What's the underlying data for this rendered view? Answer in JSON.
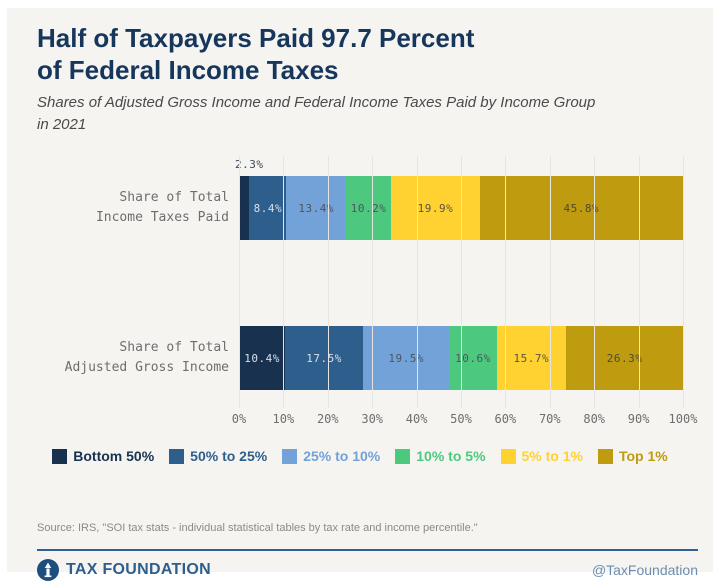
{
  "header": {
    "title": "Half of Taxpayers Paid 97.7 Percent\nof Federal Income Taxes",
    "subtitle": "Shares of Adjusted Gross Income and Federal Income Taxes Paid by Income Group\nin 2021"
  },
  "chart_data": {
    "type": "bar",
    "orientation": "horizontal",
    "stacked": true,
    "grid": true,
    "legend_position": "bottom",
    "xlim": [
      0,
      100
    ],
    "x_ticks": [
      "0%",
      "10%",
      "20%",
      "30%",
      "40%",
      "50%",
      "60%",
      "70%",
      "80%",
      "90%",
      "100%"
    ],
    "categories": [
      "Share of Total\nIncome Taxes Paid",
      "Share of Total\nAdjusted Gross Income"
    ],
    "series": [
      {
        "name": "Bottom 50%",
        "color": "#17314f",
        "label_color": "#d6e0ea",
        "values": [
          2.3,
          10.4
        ]
      },
      {
        "name": "50% to 25%",
        "color": "#2d5e8c",
        "label_color": "#d6e0ea",
        "values": [
          8.4,
          17.5
        ]
      },
      {
        "name": "25% to 10%",
        "color": "#72a2d8",
        "label_color": "#4e565f",
        "values": [
          13.4,
          19.5
        ]
      },
      {
        "name": "10% to 5%",
        "color": "#4cc97e",
        "label_color": "#4e565f",
        "values": [
          10.2,
          10.6
        ]
      },
      {
        "name": "5% to 1%",
        "color": "#ffd232",
        "label_color": "#5a5344",
        "values": [
          19.9,
          15.7
        ]
      },
      {
        "name": "Top 1%",
        "color": "#bf9b10",
        "label_color": "#4e4a33",
        "values": [
          45.8,
          26.3
        ]
      }
    ],
    "outside_label_color": "#3d4856",
    "outside_label_threshold": 4
  },
  "footer": {
    "source": "Source: IRS, \"SOI tax stats - individual statistical tables by tax rate and income percentile.\"",
    "brand": "TAX FOUNDATION",
    "handle": "@TaxFoundation"
  }
}
